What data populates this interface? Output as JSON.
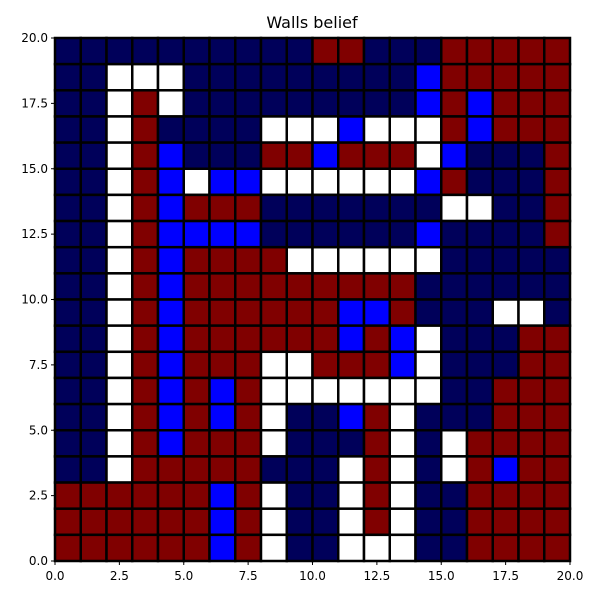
{
  "chart_data": {
    "type": "heatmap",
    "title": "Walls belief",
    "xlabel": "",
    "ylabel": "",
    "xlim": [
      0,
      20
    ],
    "ylim": [
      0,
      20
    ],
    "x_ticks": [
      0,
      2.5,
      5,
      7.5,
      10,
      12.5,
      15,
      17.5,
      20
    ],
    "y_ticks": [
      0,
      2.5,
      5,
      7.5,
      10,
      12.5,
      15,
      17.5,
      20
    ],
    "x_tick_labels": [
      "0.0",
      "2.5",
      "5.0",
      "7.5",
      "10.0",
      "12.5",
      "15.0",
      "17.5",
      "20.0"
    ],
    "y_tick_labels": [
      "0.0",
      "2.5",
      "5.0",
      "7.5",
      "10.0",
      "12.5",
      "15.0",
      "17.5",
      "20.0"
    ],
    "grid_size": [
      20,
      20
    ],
    "cell_edge_color": "#000000",
    "legend": "none",
    "colors": {
      "N": "#00005a",
      "R": "#800000",
      "W": "#ffffff",
      "B": "#0000ff"
    },
    "rows_top_to_bottom": [
      "NNNNNNNNNNRRNNNRRRRR",
      "NNWWWNNNNNNNNNBRRRRR",
      "NNWRWNNNNNNNNNBRBRRR",
      "NNWRNNNNWWWBWWWRBRRR",
      "NNWRBNNNRRBRRRWBNNNR",
      "NNWRBWBBWWWWWWBRNNNR",
      "NNWRBRRRNNNNNNNWWNNR",
      "NNWRBBBBNNNNNNBNNNNR",
      "NNWRBRRRRWWWWWWNNNNN",
      "NNWRBRRRRRRRRRNNNNNN",
      "NNWRBRRRRRRBBRNNNWWN",
      "NNWRBRRRRRRBRBWNNNRR",
      "NNWRBRRRWWRRRBWNNNRR",
      "NNWRBRBRWWWWWWWNNRRR",
      "NNWRBRBRWNNBRWNNNRRR",
      "NNWRBRRRWNNNRWNWRRRR",
      "NNWRRRRRNNNWRWNWRBRR",
      "RRRRRRBRWNNWRWNNRRRR",
      "RRRRRRBRWNNWRWNNRRRR",
      "RRRRRRBRWNNWWWNNRRRR"
    ]
  }
}
